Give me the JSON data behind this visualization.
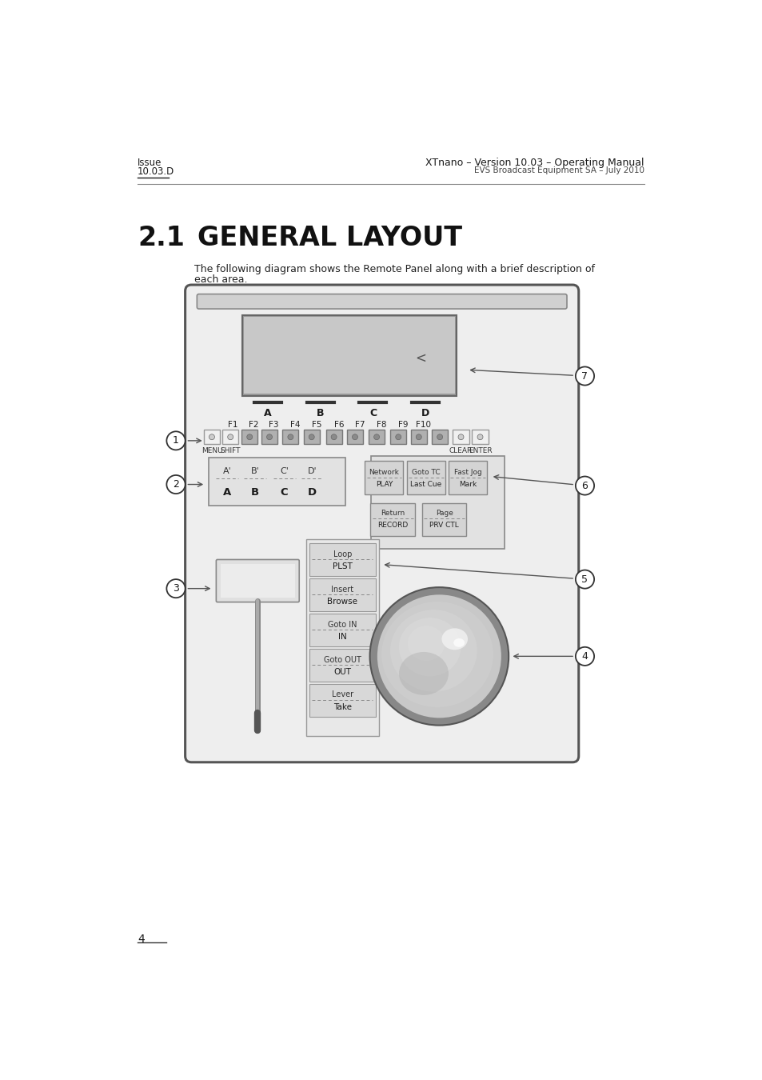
{
  "header_left_line1": "Issue",
  "header_left_line2": "10.03.D",
  "header_right_line1": "XTnano – Version 10.03 – Operating Manual",
  "header_right_line2": "EVS Broadcast Equipment SA – July 2010",
  "section_number": "2.1",
  "section_name": "GENERAL LAYOUT",
  "body_text_line1": "The following diagram shows the Remote Panel along with a brief description of",
  "body_text_line2": "each area.",
  "footer_page": "4",
  "bg_color": "#ffffff",
  "panel_outer_bg": "#e8e8e8",
  "panel_inner_bg": "#ebebeb",
  "screen_bg": "#cccccc",
  "btn_grey": "#b8b8b8",
  "btn_white": "#f2f2f2",
  "btn_dark_grey": "#aaaaaa"
}
